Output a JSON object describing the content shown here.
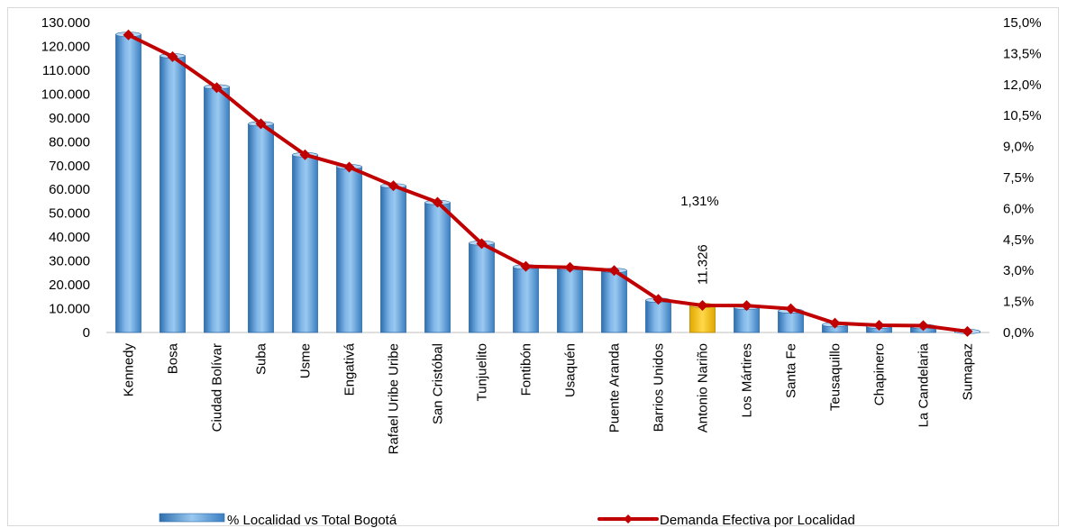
{
  "chart_data": {
    "type": "bar",
    "categories": [
      "Kennedy",
      "Bosa",
      "Ciudad Bolívar",
      "Suba",
      "Usme",
      "Engativá",
      "Rafael Uribe Uribe",
      "San Cristóbal",
      "Tunjuelito",
      "Fontibón",
      "Usaquén",
      "Puente Aranda",
      "Barrios Unidos",
      "Antonio Nariño",
      "Los Mártires",
      "Santa Fe",
      "Teusaquillo",
      "Chapinero",
      "La Candelaria",
      "Sumapaz"
    ],
    "series": [
      {
        "name": "% Localidad vs Total Bogotá",
        "type": "bar",
        "axis": "left",
        "color": "#5b9bd5",
        "values": [
          125000,
          116000,
          103000,
          87500,
          74500,
          69500,
          61500,
          54500,
          37500,
          27500,
          27000,
          26000,
          13500,
          11326,
          10500,
          9000,
          3300,
          2600,
          2500,
          400
        ]
      },
      {
        "name": "Demanda Efectiva por Localidad",
        "type": "line",
        "axis": "right",
        "color": "#c00000",
        "values": [
          14.4,
          13.35,
          11.85,
          10.1,
          8.6,
          8.0,
          7.1,
          6.3,
          4.3,
          3.2,
          3.15,
          3.0,
          1.6,
          1.31,
          1.3,
          1.15,
          0.45,
          0.35,
          0.33,
          0.05
        ]
      }
    ],
    "left_axis": {
      "ylim": [
        0,
        130000
      ],
      "ticks": [
        "0",
        "10.000",
        "20.000",
        "30.000",
        "40.000",
        "50.000",
        "60.000",
        "70.000",
        "80.000",
        "90.000",
        "100.000",
        "110.000",
        "120.000",
        "130.000"
      ]
    },
    "right_axis": {
      "ylim": [
        0,
        15
      ],
      "ticks": [
        "0,0%",
        "1,5%",
        "3,0%",
        "4,5%",
        "6,0%",
        "7,5%",
        "9,0%",
        "10,5%",
        "12,0%",
        "13,5%",
        "15,0%"
      ]
    },
    "highlight": {
      "category": "Antonio Nariño",
      "color": "#ffc000"
    },
    "annotations": {
      "highlight_value_label": "11.326",
      "highlight_percent_label": "1,31%"
    },
    "legend_position": "bottom",
    "title": "",
    "xlabel": "",
    "ylabel": ""
  }
}
